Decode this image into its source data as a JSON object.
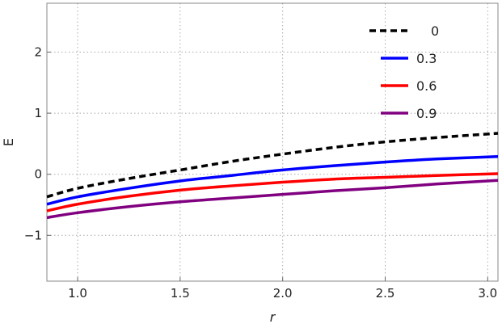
{
  "chart_data": {
    "type": "line",
    "title": "",
    "xlabel": "r",
    "ylabel": "E",
    "xlim": [
      0.85,
      3.05
    ],
    "ylim": [
      -1.75,
      2.8
    ],
    "grid": true,
    "legend_position": "top-right",
    "x_ticks": [
      {
        "value": 1.0,
        "label": "1.0"
      },
      {
        "value": 1.5,
        "label": "1.5"
      },
      {
        "value": 2.0,
        "label": "2.0"
      },
      {
        "value": 2.5,
        "label": "2.5"
      },
      {
        "value": 3.0,
        "label": "3.0"
      }
    ],
    "y_ticks": [
      {
        "value": -1,
        "label": "−1"
      },
      {
        "value": 0,
        "label": "0"
      },
      {
        "value": 1,
        "label": "1"
      },
      {
        "value": 2,
        "label": "2"
      }
    ],
    "x": [
      0.85,
      1.0,
      1.25,
      1.5,
      1.75,
      2.0,
      2.25,
      2.5,
      2.75,
      3.05
    ],
    "series": [
      {
        "name": "0",
        "color": "#000000",
        "dashed": true,
        "values": [
          -0.37,
          -0.23,
          -0.07,
          0.07,
          0.21,
          0.33,
          0.44,
          0.53,
          0.6,
          0.67
        ]
      },
      {
        "name": "0.3",
        "color": "#0000ff",
        "dashed": false,
        "values": [
          -0.49,
          -0.37,
          -0.23,
          -0.11,
          -0.02,
          0.07,
          0.14,
          0.2,
          0.25,
          0.29
        ]
      },
      {
        "name": "0.6",
        "color": "#ff0000",
        "dashed": false,
        "values": [
          -0.6,
          -0.49,
          -0.36,
          -0.26,
          -0.19,
          -0.13,
          -0.08,
          -0.05,
          -0.02,
          0.01
        ]
      },
      {
        "name": "0.9",
        "color": "#800080",
        "dashed": false,
        "values": [
          -0.71,
          -0.63,
          -0.53,
          -0.45,
          -0.39,
          -0.33,
          -0.27,
          -0.22,
          -0.16,
          -0.1
        ]
      }
    ]
  }
}
